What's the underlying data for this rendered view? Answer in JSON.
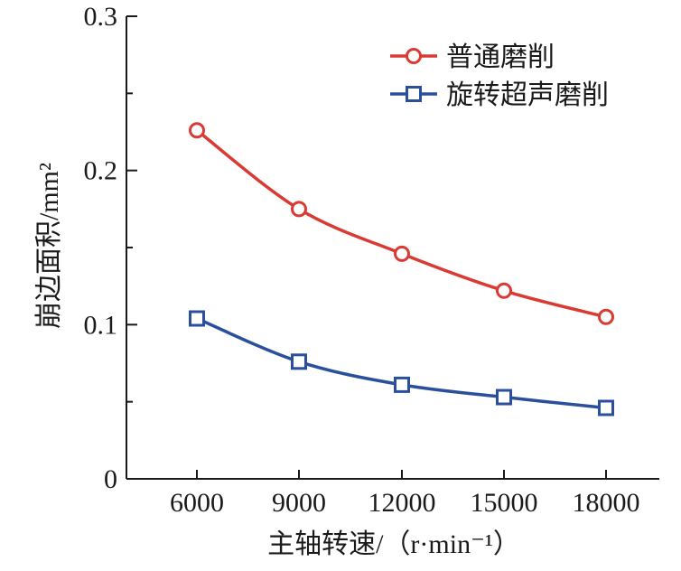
{
  "chart_data": {
    "type": "line",
    "xlabel": "主轴转速/（r·min⁻¹）",
    "ylabel": "崩边面积/mm²",
    "x": [
      6000,
      9000,
      12000,
      15000,
      18000
    ],
    "x_tick_labels": [
      "6000",
      "9000",
      "12000",
      "15000",
      "18000"
    ],
    "y_tick_labels": [
      "0",
      "0.1",
      "0.2",
      "0.3"
    ],
    "ylim": [
      0,
      0.3
    ],
    "legend_position": "top-right",
    "grid": false,
    "series": [
      {
        "name": "普通磨削",
        "marker": "circle",
        "color": "#d93a33",
        "values": [
          0.226,
          0.175,
          0.146,
          0.122,
          0.105
        ]
      },
      {
        "name": "旋转超声磨削",
        "marker": "square",
        "color": "#2a4f9c",
        "values": [
          0.104,
          0.076,
          0.061,
          0.053,
          0.046
        ]
      }
    ]
  }
}
